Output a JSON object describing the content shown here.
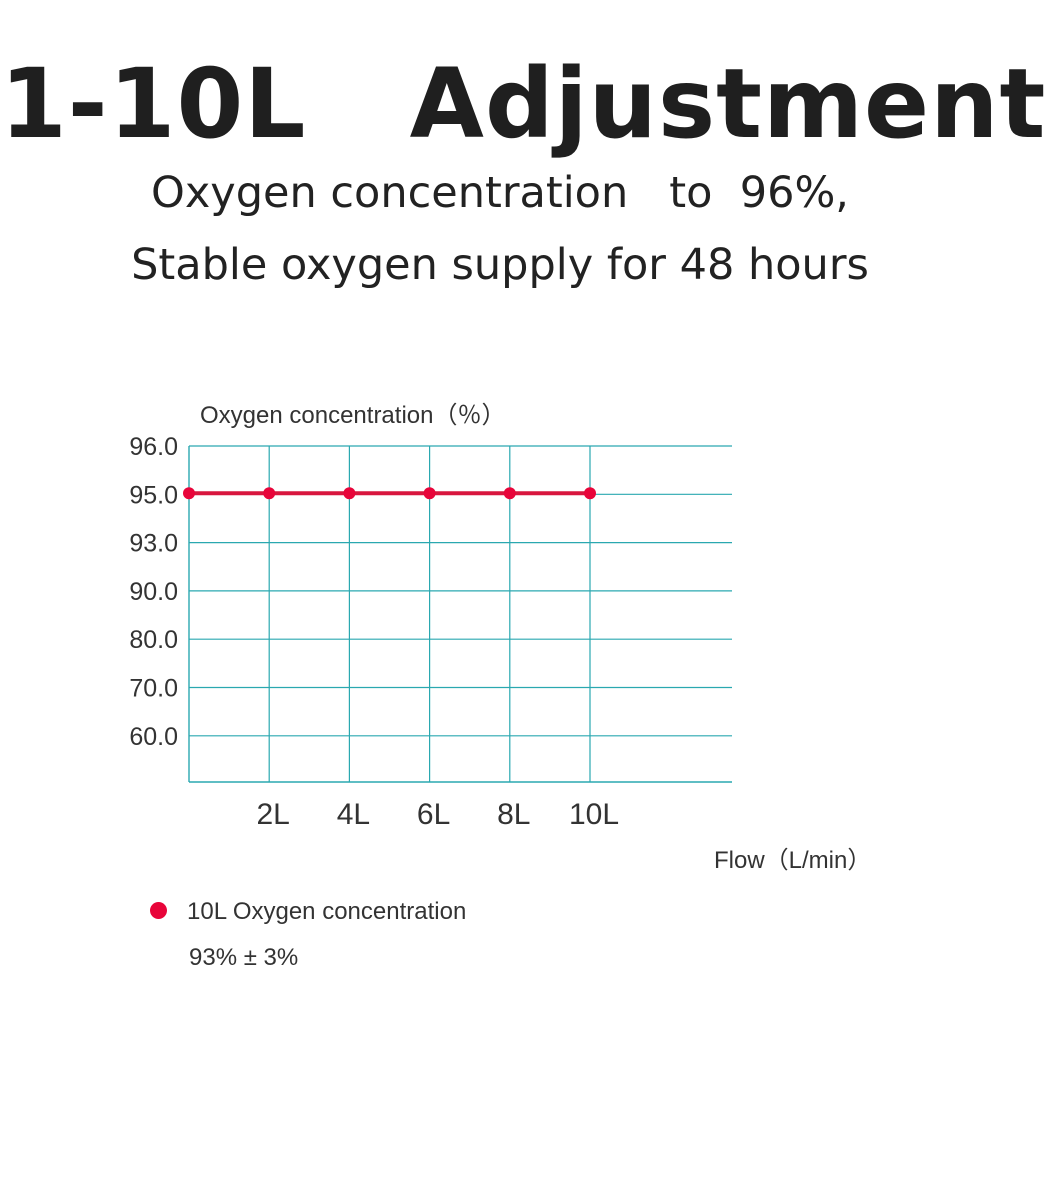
{
  "header": {
    "title": "1-10L   Adjustment",
    "line1": "Oxygen concentration   to  96%,",
    "line2": "Stable oxygen supply for 48 hours"
  },
  "chart_data": {
    "type": "line",
    "ylabel": "Oxygen concentration（％）",
    "xlabel": "Flow（L/min）",
    "y_ticks": [
      "96.0",
      "95.0",
      "93.0",
      "90.0",
      "80.0",
      "70.0",
      "60.0"
    ],
    "x_ticks": [
      "2L",
      "4L",
      "6L",
      "8L",
      "10L"
    ],
    "x": [
      0,
      2,
      4,
      6,
      8,
      10
    ],
    "series": [
      {
        "values": [
          95,
          95,
          95,
          95,
          95,
          95
        ]
      }
    ],
    "grid": true,
    "colors": {
      "line": "#d8163e",
      "point": "#e8053a",
      "grid": "#2aa8b0"
    }
  },
  "legend": {
    "label": "10L   Oxygen concentration",
    "note": "93% ± 3%"
  }
}
